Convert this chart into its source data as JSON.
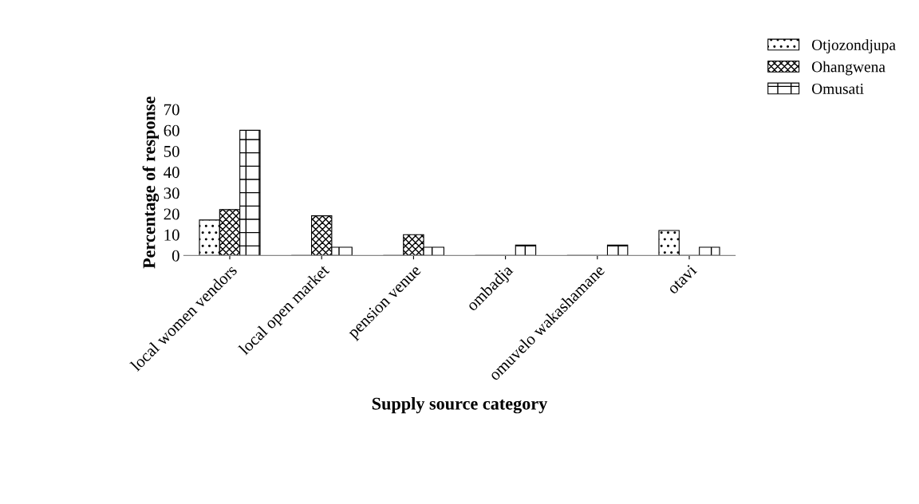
{
  "chart_data": {
    "type": "bar",
    "xlabel": "Supply source category",
    "ylabel": "Percentage of response",
    "categories": [
      "local women vendors",
      "local open market",
      "pension venue",
      "ombadja",
      "omuvelo wakashamane",
      "otavi"
    ],
    "series": [
      {
        "name": "Otjozondjupa",
        "color": "#000000",
        "values": [
          17,
          0,
          0,
          0,
          0,
          12
        ]
      },
      {
        "name": "Ohangwena",
        "color": "#000000",
        "values": [
          22,
          19,
          10,
          0,
          0,
          0
        ]
      },
      {
        "name": "Omusati",
        "color": "#000000",
        "values": [
          60,
          4,
          4,
          5,
          5,
          4
        ]
      }
    ],
    "ylim": [
      0,
      70
    ],
    "yticks": [
      0,
      10,
      20,
      30,
      40,
      50,
      60,
      70
    ],
    "grid": false,
    "legend": "top right"
  }
}
